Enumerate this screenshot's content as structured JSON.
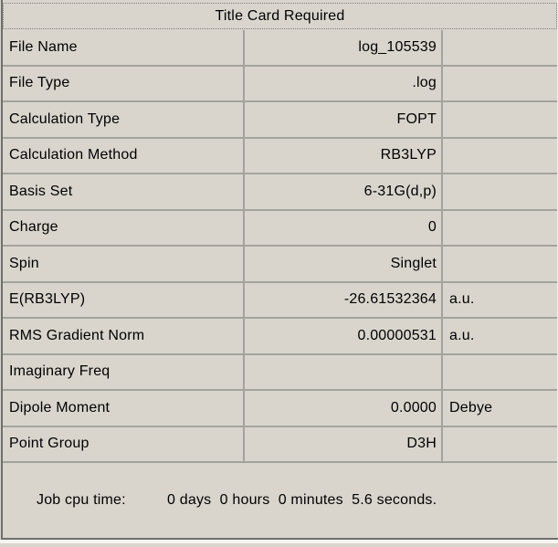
{
  "window": {
    "colors": {
      "background": "#d9d5cd",
      "grid_line": "#a3a39b",
      "frame_dark": "#6e6e6e",
      "frame_light": "#f6f5f1",
      "text": "#000000"
    }
  },
  "summary": {
    "header": "Title Card Required",
    "rows": [
      {
        "label": "File Name",
        "value": "log_105539",
        "unit": ""
      },
      {
        "label": "File Type",
        "value": ".log",
        "unit": ""
      },
      {
        "label": "Calculation Type",
        "value": "FOPT",
        "unit": ""
      },
      {
        "label": "Calculation Method",
        "value": "RB3LYP",
        "unit": ""
      },
      {
        "label": "Basis Set",
        "value": "6-31G(d,p)",
        "unit": ""
      },
      {
        "label": "Charge",
        "value": "0",
        "unit": ""
      },
      {
        "label": "Spin",
        "value": "Singlet",
        "unit": ""
      },
      {
        "label": "E(RB3LYP)",
        "value": "-26.61532364",
        "unit": "a.u."
      },
      {
        "label": "RMS Gradient Norm",
        "value": "0.00000531",
        "unit": "a.u."
      },
      {
        "label": "Imaginary Freq",
        "value": "",
        "unit": ""
      },
      {
        "label": "Dipole Moment",
        "value": "0.0000",
        "unit": "Debye"
      },
      {
        "label": "Point Group",
        "value": "D3H",
        "unit": ""
      }
    ]
  },
  "footer": {
    "label": "Job cpu time:",
    "value": "0 days  0 hours  0 minutes  5.6 seconds."
  }
}
